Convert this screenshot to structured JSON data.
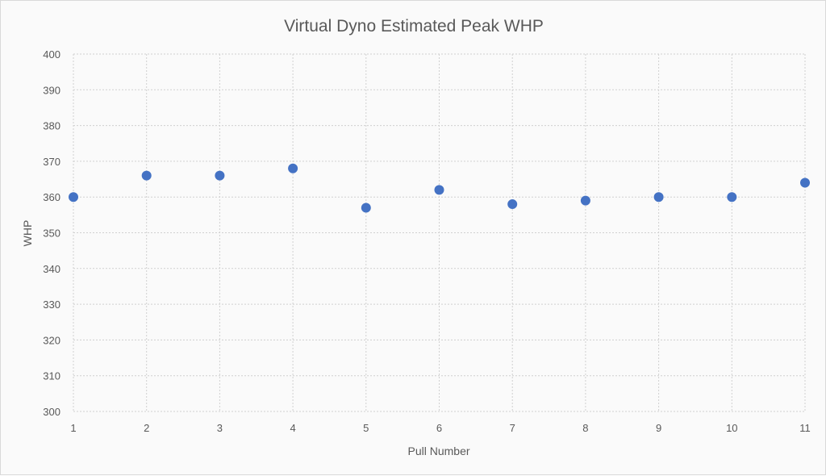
{
  "chart_data": {
    "type": "scatter",
    "title": "Virtual Dyno Estimated Peak WHP",
    "xlabel": "Pull Number",
    "ylabel": "WHP",
    "x": [
      1,
      2,
      3,
      4,
      5,
      6,
      7,
      8,
      9,
      10,
      11
    ],
    "y": [
      360,
      366,
      366,
      368,
      357,
      362,
      358,
      359,
      360,
      360,
      364
    ],
    "xlim": [
      1,
      11
    ],
    "ylim": [
      300,
      400
    ],
    "xticks": [
      1,
      2,
      3,
      4,
      5,
      6,
      7,
      8,
      9,
      10,
      11
    ],
    "yticks": [
      300,
      310,
      320,
      330,
      340,
      350,
      360,
      370,
      380,
      390,
      400
    ],
    "grid": true,
    "legend": "none",
    "marker_color": "#4472C4"
  }
}
